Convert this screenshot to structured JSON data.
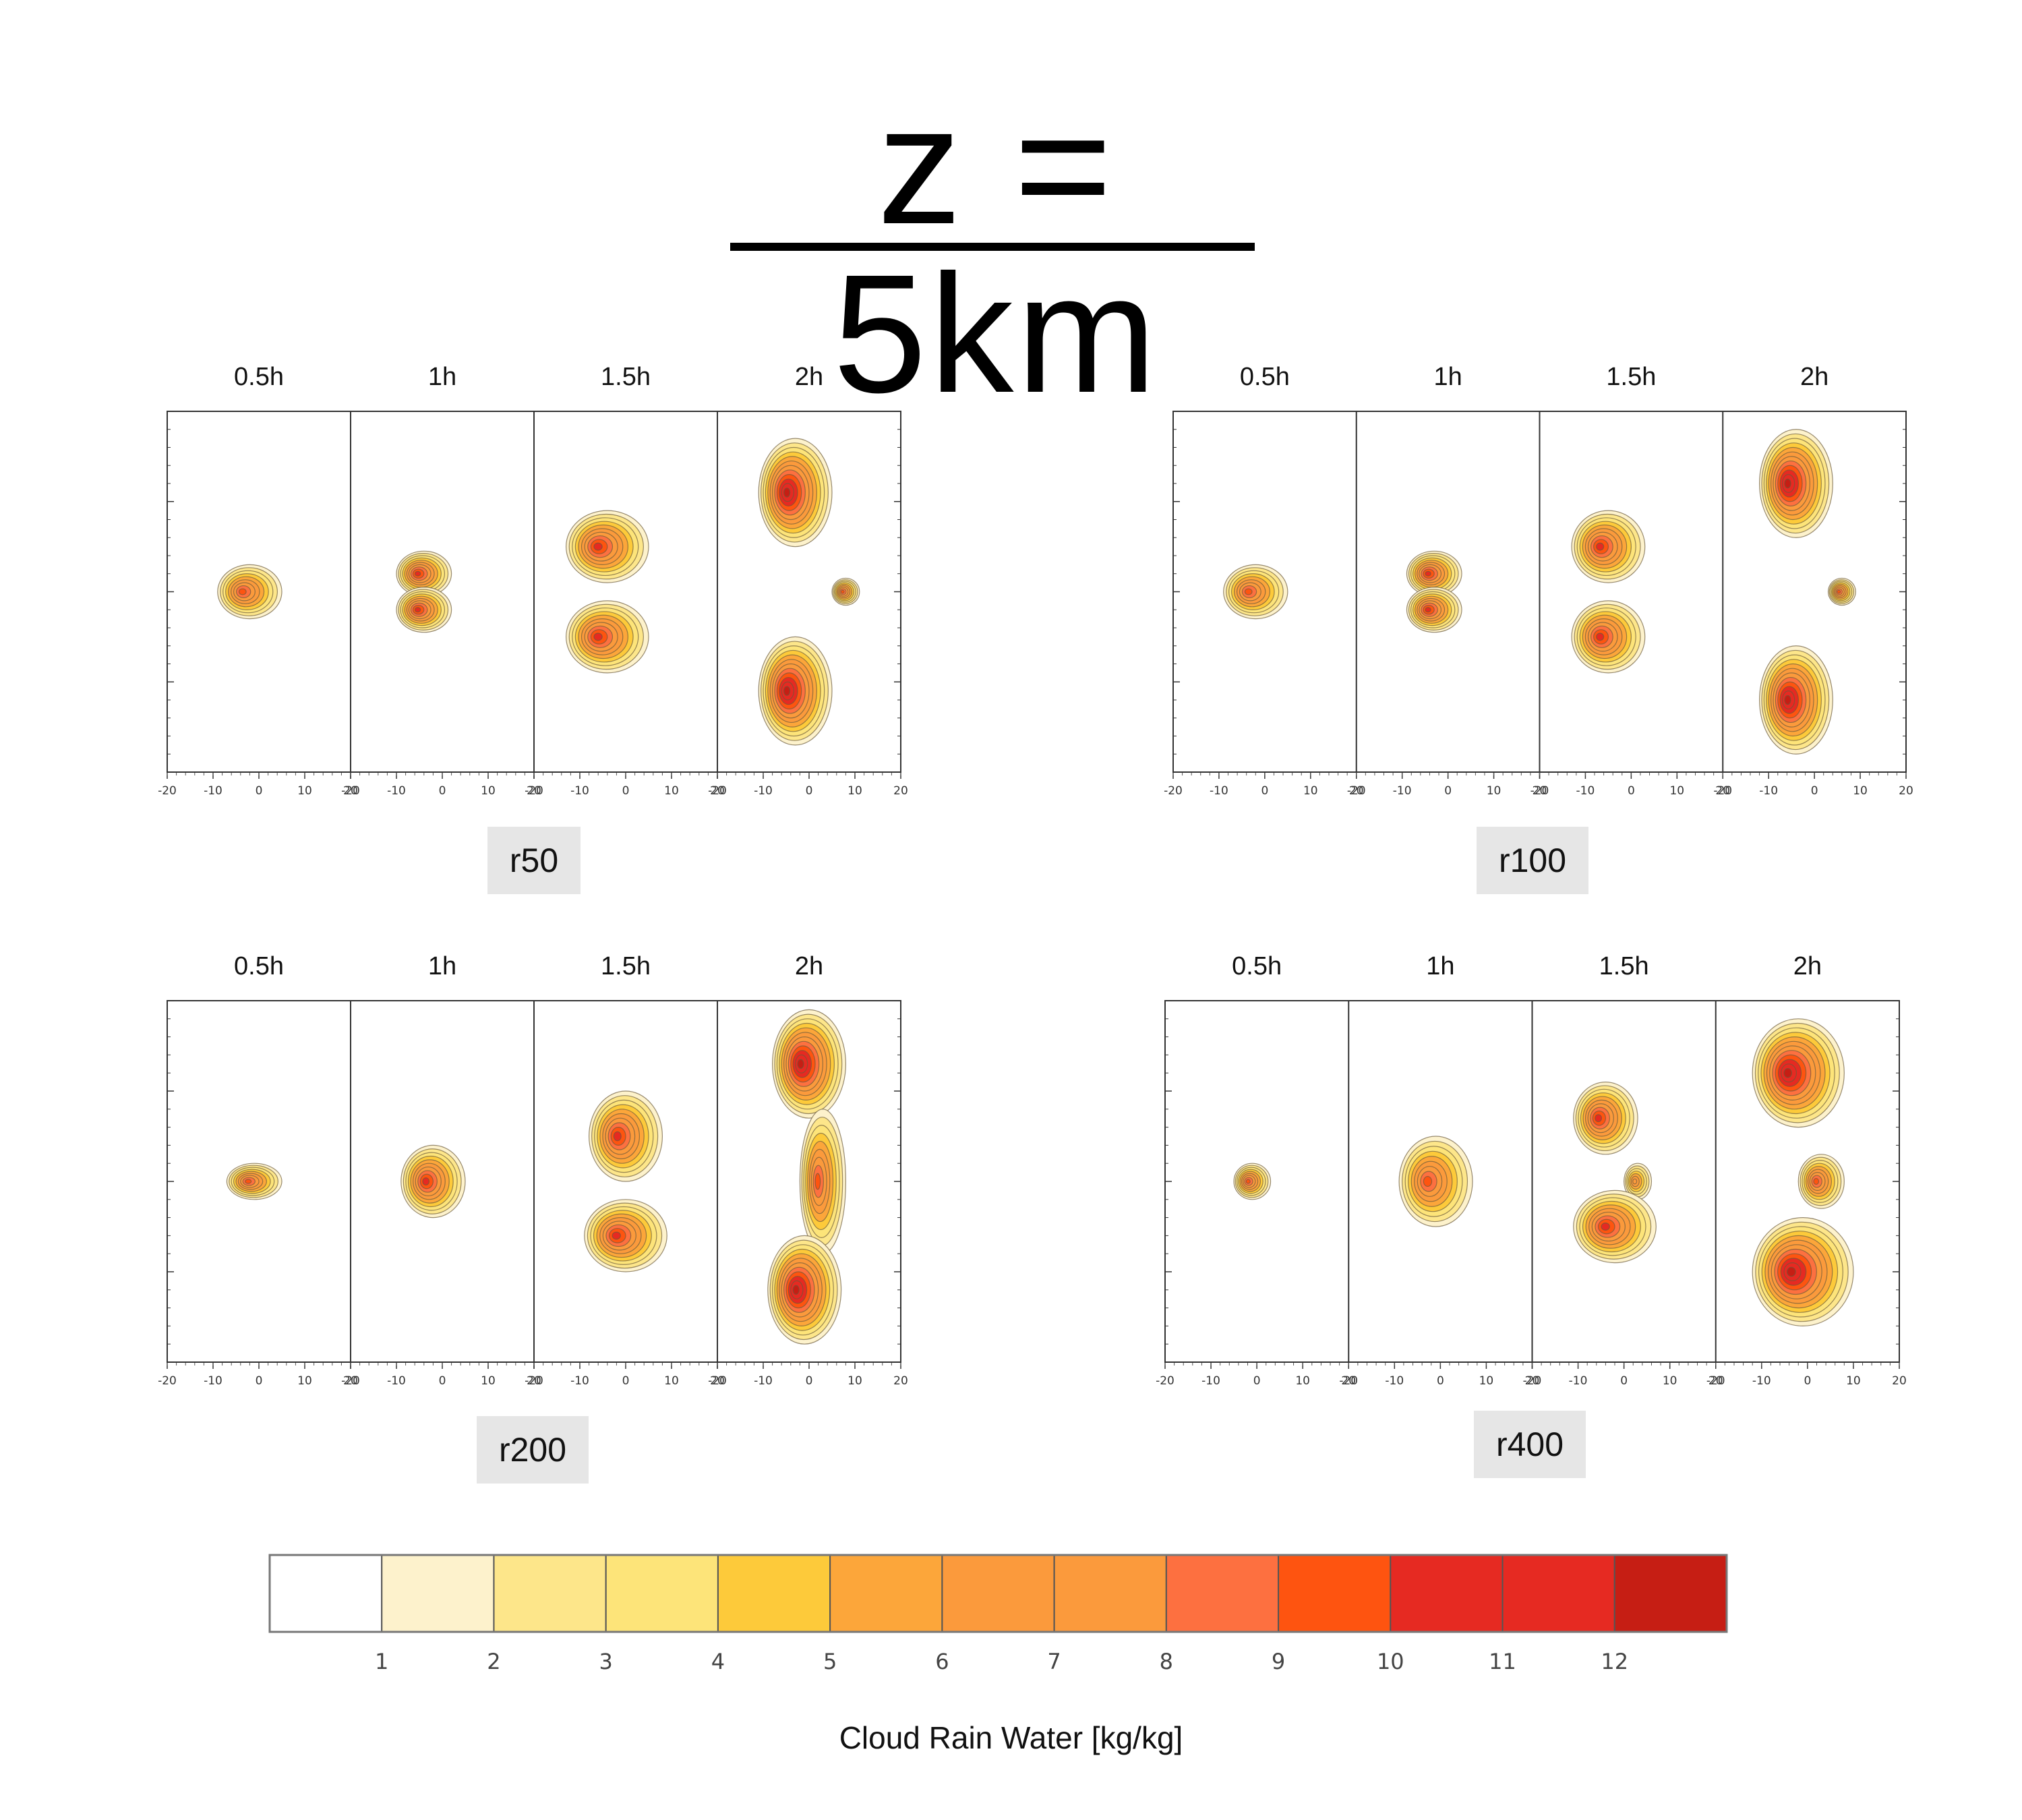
{
  "title": "z = 5km",
  "colorbar": {
    "label": "Cloud Rain Water [kg/kg]",
    "ticks": [
      "1",
      "2",
      "3",
      "4",
      "5",
      "6",
      "7",
      "8",
      "9",
      "10",
      "11",
      "12"
    ],
    "colors": [
      "#ffffff",
      "#fdf2cc",
      "#fde68a",
      "#fde479",
      "#fdca3a",
      "#fca63a",
      "#fb9a3c",
      "#fb9a3c",
      "#fd7040",
      "#fe5410",
      "#e62a22",
      "#e62a22",
      "#c61e14"
    ]
  },
  "chart_data": {
    "type": "heatmap",
    "variable": "Cloud Rain Water [kg/kg]",
    "contour_levels": [
      1,
      2,
      3,
      4,
      5,
      6,
      7,
      8,
      9,
      10,
      11,
      12
    ],
    "x_ticks": [
      "-20",
      "-10",
      "0",
      "10",
      "20"
    ],
    "xlim": [
      -20,
      20
    ],
    "panels": [
      {
        "run": "r50",
        "times": [
          "0.5h",
          "1h",
          "1.5h",
          "2h"
        ],
        "subpanels": [
          {
            "time": "0.5h",
            "blobs": [
              {
                "x": -2,
                "y": 0,
                "rx": 7,
                "ry": 3,
                "peak": 9
              }
            ]
          },
          {
            "time": "1h",
            "blobs": [
              {
                "x": -4,
                "y": 2,
                "rx": 6,
                "ry": 2.5,
                "peak": 10
              },
              {
                "x": -4,
                "y": -2,
                "rx": 6,
                "ry": 2.5,
                "peak": 10
              }
            ]
          },
          {
            "time": "1.5h",
            "blobs": [
              {
                "x": -4,
                "y": 5,
                "rx": 9,
                "ry": 4,
                "peak": 10
              },
              {
                "x": -4,
                "y": -5,
                "rx": 9,
                "ry": 4,
                "peak": 10
              }
            ]
          },
          {
            "time": "2h",
            "blobs": [
              {
                "x": -3,
                "y": 11,
                "rx": 8,
                "ry": 6,
                "peak": 12
              },
              {
                "x": -3,
                "y": -11,
                "rx": 8,
                "ry": 6,
                "peak": 12
              },
              {
                "x": 8,
                "y": 0,
                "rx": 3,
                "ry": 1.5,
                "peak": 9
              }
            ]
          }
        ]
      },
      {
        "run": "r100",
        "times": [
          "0.5h",
          "1h",
          "1.5h",
          "2h"
        ],
        "subpanels": [
          {
            "time": "0.5h",
            "blobs": [
              {
                "x": -2,
                "y": 0,
                "rx": 7,
                "ry": 3,
                "peak": 9
              }
            ]
          },
          {
            "time": "1h",
            "blobs": [
              {
                "x": -3,
                "y": 2,
                "rx": 6,
                "ry": 2.5,
                "peak": 10
              },
              {
                "x": -3,
                "y": -2,
                "rx": 6,
                "ry": 2.5,
                "peak": 10
              }
            ]
          },
          {
            "time": "1.5h",
            "blobs": [
              {
                "x": -5,
                "y": 5,
                "rx": 8,
                "ry": 4,
                "peak": 10
              },
              {
                "x": -5,
                "y": -5,
                "rx": 8,
                "ry": 4,
                "peak": 10
              }
            ]
          },
          {
            "time": "2h",
            "blobs": [
              {
                "x": -4,
                "y": 12,
                "rx": 8,
                "ry": 6,
                "peak": 12
              },
              {
                "x": -4,
                "y": -12,
                "rx": 8,
                "ry": 6,
                "peak": 12
              },
              {
                "x": 6,
                "y": 0,
                "rx": 3,
                "ry": 1.5,
                "peak": 9
              }
            ]
          }
        ]
      },
      {
        "run": "r200",
        "times": [
          "0.5h",
          "1h",
          "1.5h",
          "2h"
        ],
        "subpanels": [
          {
            "time": "0.5h",
            "blobs": [
              {
                "x": -1,
                "y": 0,
                "rx": 6,
                "ry": 2,
                "peak": 9
              }
            ]
          },
          {
            "time": "1h",
            "blobs": [
              {
                "x": -2,
                "y": 0,
                "rx": 7,
                "ry": 4,
                "peak": 10
              }
            ]
          },
          {
            "time": "1.5h",
            "blobs": [
              {
                "x": 0,
                "y": 5,
                "rx": 8,
                "ry": 5,
                "peak": 10
              },
              {
                "x": 0,
                "y": -6,
                "rx": 9,
                "ry": 4,
                "peak": 10
              }
            ]
          },
          {
            "time": "2h",
            "blobs": [
              {
                "x": 0,
                "y": 13,
                "rx": 8,
                "ry": 6,
                "peak": 12
              },
              {
                "x": 3,
                "y": 0,
                "rx": 5,
                "ry": 8,
                "peak": 9
              },
              {
                "x": -1,
                "y": -12,
                "rx": 8,
                "ry": 6,
                "peak": 12
              }
            ]
          }
        ]
      },
      {
        "run": "r400",
        "times": [
          "0.5h",
          "1h",
          "1.5h",
          "2h"
        ],
        "subpanels": [
          {
            "time": "0.5h",
            "blobs": [
              {
                "x": -1,
                "y": 0,
                "rx": 4,
                "ry": 2,
                "peak": 9
              }
            ]
          },
          {
            "time": "1h",
            "blobs": [
              {
                "x": -1,
                "y": 0,
                "rx": 8,
                "ry": 5,
                "peak": 9
              }
            ]
          },
          {
            "time": "1.5h",
            "blobs": [
              {
                "x": -4,
                "y": 7,
                "rx": 7,
                "ry": 4,
                "peak": 10
              },
              {
                "x": 3,
                "y": 0,
                "rx": 3,
                "ry": 2,
                "peak": 7
              },
              {
                "x": -2,
                "y": -5,
                "rx": 9,
                "ry": 4,
                "peak": 10
              }
            ]
          },
          {
            "time": "2h",
            "blobs": [
              {
                "x": -2,
                "y": 12,
                "rx": 10,
                "ry": 6,
                "peak": 12
              },
              {
                "x": 3,
                "y": 0,
                "rx": 5,
                "ry": 3,
                "peak": 9
              },
              {
                "x": -1,
                "y": -10,
                "rx": 11,
                "ry": 6,
                "peak": 12
              }
            ]
          }
        ]
      }
    ]
  }
}
